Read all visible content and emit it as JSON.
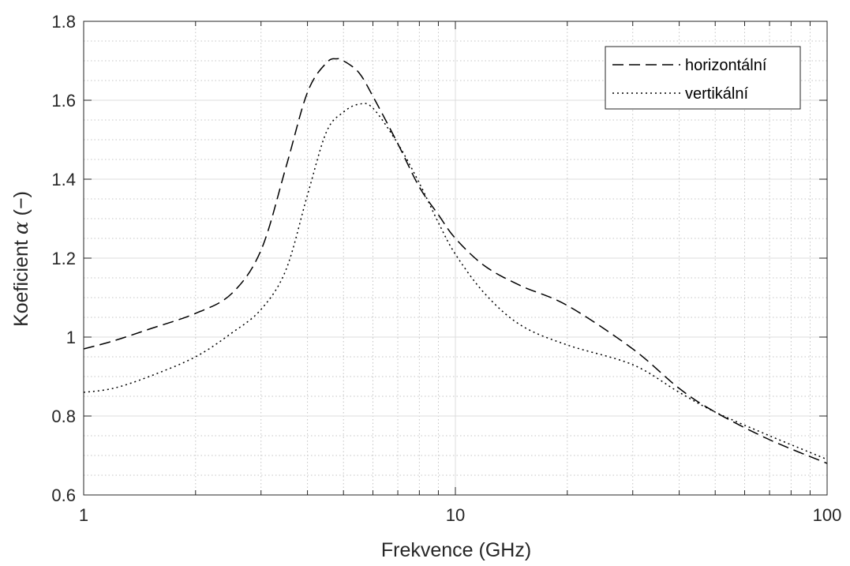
{
  "chart_data": {
    "type": "line",
    "xlabel": "Frekvence (GHz)",
    "ylabel_prefix": "Koeficient ",
    "ylabel_symbol": "α",
    "ylabel_suffix": " (−)",
    "xscale": "log",
    "xlim": [
      1,
      100
    ],
    "ylim": [
      0.6,
      1.8
    ],
    "grid": true,
    "minor_grid": true,
    "legend_position": "top-right",
    "x_ticks": [
      1,
      10,
      100
    ],
    "x_tick_labels": [
      "1",
      "10",
      "100"
    ],
    "y_ticks": [
      0.6,
      0.8,
      1.0,
      1.2,
      1.4,
      1.6,
      1.8
    ],
    "y_tick_labels": [
      "0.6",
      "0.8",
      "1",
      "1.2",
      "1.4",
      "1.6",
      "1.8"
    ],
    "series": [
      {
        "name": "horizontální",
        "style": "dashed",
        "color": "#000000",
        "x": [
          1,
          1.2,
          1.5,
          2,
          2.5,
          3,
          3.5,
          4,
          4.5,
          4.8,
          5,
          5.5,
          6,
          7,
          8,
          9,
          10,
          12,
          15,
          20,
          30,
          40,
          50,
          70,
          100
        ],
        "y": [
          0.97,
          0.99,
          1.02,
          1.06,
          1.11,
          1.22,
          1.43,
          1.62,
          1.695,
          1.705,
          1.7,
          1.67,
          1.61,
          1.49,
          1.38,
          1.31,
          1.25,
          1.18,
          1.13,
          1.08,
          0.97,
          0.87,
          0.81,
          0.74,
          0.68
        ]
      },
      {
        "name": "vertikální",
        "style": "dotted",
        "color": "#000000",
        "x": [
          1,
          1.2,
          1.5,
          2,
          2.5,
          3,
          3.5,
          4,
          4.5,
          5,
          5.5,
          6,
          7,
          8,
          9,
          10,
          12,
          15,
          20,
          30,
          40,
          50,
          70,
          100
        ],
        "y": [
          0.86,
          0.87,
          0.9,
          0.95,
          1.01,
          1.07,
          1.17,
          1.36,
          1.52,
          1.57,
          1.59,
          1.58,
          1.49,
          1.39,
          1.29,
          1.21,
          1.11,
          1.03,
          0.98,
          0.93,
          0.86,
          0.81,
          0.75,
          0.69
        ]
      }
    ]
  }
}
